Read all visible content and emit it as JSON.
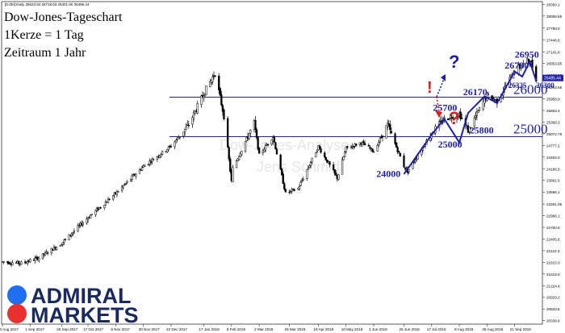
{
  "header": {
    "instrument_line": "[DJ30] Daily 26623.84 26718.03 26301.90 26485.44"
  },
  "overlay": {
    "title": "Dow-Jones-Tageschart",
    "line2": "1Kerze = 1 Tag",
    "line3": "Zeitraum 1 Jahr"
  },
  "watermark": {
    "text": "Dow-Jones-Analyse",
    "author": "Jens Schmidt"
  },
  "brand": {
    "line1": "ADMIRAL",
    "line2": "MARKETS",
    "color_dark": "#1a2a5e",
    "color_red": "#e8312f"
  },
  "colors": {
    "level_line": "#1f1fa8",
    "annotation": "#1f1fa8",
    "question_blue": "#1f1fa8",
    "question_red": "#d62020",
    "candle": "#000000",
    "current_price_tag": "#1f1fa8"
  },
  "chart_data": {
    "type": "candlestick",
    "x_ticks": [
      "10 Aug 2017",
      "1 Sep 2017",
      "26 Sep 2017",
      "17 Oct 2017",
      "8 Nov 2017",
      "30 Nov 2017",
      "22 Dec 2017",
      "17 Jan 2018",
      "8 Feb 2018",
      "2 Mar 2018",
      "26 Mar 2018",
      "18 Apr 2018",
      "10 May 2018",
      "1 Jun 2018",
      "25 Jun 2018",
      "17 Jul 2018",
      "8 Aug 2018",
      "30 Aug 2018",
      "21 Sep 2018"
    ],
    "y_ticks": [
      28350.1,
      28055.65,
      27750.0,
      27446.6,
      27141.8,
      26853.95,
      26558.95,
      26253.55,
      25958.9,
      25663.4,
      25368.3,
      25072.75,
      24777.2,
      24482.0,
      24186.5,
      23891.5,
      23596.1,
      23291.05,
      22996.1,
      22700.6,
      22405.6,
      22110.3,
      21815.0,
      21519.5,
      21224.4,
      20929.2,
      20633.8,
      20338.6
    ],
    "ylim": [
      20250,
      28400
    ],
    "current_price": "26485.44",
    "price_path": [
      [
        "2017-08-10",
        21830
      ],
      [
        "2017-08-25",
        21790
      ],
      [
        "2017-09-08",
        21930
      ],
      [
        "2017-09-26",
        22300
      ],
      [
        "2017-10-17",
        22950
      ],
      [
        "2017-11-08",
        23560
      ],
      [
        "2017-11-30",
        24250
      ],
      [
        "2017-12-22",
        24760
      ],
      [
        "2018-01-05",
        25300
      ],
      [
        "2018-01-17",
        26100
      ],
      [
        "2018-01-26",
        26610
      ],
      [
        "2018-02-02",
        25520
      ],
      [
        "2018-02-08",
        23860
      ],
      [
        "2018-02-09",
        24190
      ],
      [
        "2018-02-26",
        25350
      ],
      [
        "2018-03-02",
        24530
      ],
      [
        "2018-03-13",
        25010
      ],
      [
        "2018-03-23",
        23560
      ],
      [
        "2018-04-02",
        23690
      ],
      [
        "2018-04-18",
        24750
      ],
      [
        "2018-05-03",
        23950
      ],
      [
        "2018-05-10",
        24700
      ],
      [
        "2018-05-22",
        24850
      ],
      [
        "2018-06-01",
        24630
      ],
      [
        "2018-06-12",
        25300
      ],
      [
        "2018-06-25",
        24250
      ],
      [
        "2018-06-28",
        24120
      ],
      [
        "2018-07-17",
        25100
      ],
      [
        "2018-07-27",
        25450
      ],
      [
        "2018-08-08",
        25580
      ],
      [
        "2018-08-15",
        25150
      ],
      [
        "2018-08-30",
        26050
      ],
      [
        "2018-09-07",
        25900
      ],
      [
        "2018-09-21",
        26680
      ],
      [
        "2018-10-03",
        26950
      ],
      [
        "2018-10-08",
        26480
      ]
    ],
    "levels": [
      {
        "label": "26000",
        "value": 26000
      },
      {
        "label": "25000",
        "value": 25000
      }
    ],
    "annotations": [
      {
        "text": "24000",
        "x": "2018-06-12",
        "y": 23980
      },
      {
        "text": "25000",
        "x": "2018-07-31",
        "y": 24720
      },
      {
        "text": "25700",
        "x": "2018-07-27",
        "y": 25650
      },
      {
        "text": "25800",
        "x": "2018-08-25",
        "y": 25080
      },
      {
        "text": "26170",
        "x": "2018-08-20",
        "y": 26050
      },
      {
        "text": "26325",
        "x": "2018-09-25",
        "y": 26230
      },
      {
        "text": "26780",
        "x": "2018-09-22",
        "y": 26730
      },
      {
        "text": "26950",
        "x": "2018-09-30",
        "y": 27000
      },
      {
        "text": "26300",
        "x": "2018-10-17",
        "y": 26230
      }
    ],
    "wave_path": [
      [
        "2018-06-25",
        24050
      ],
      [
        "2018-07-17",
        25050
      ],
      [
        "2018-07-27",
        25450
      ],
      [
        "2018-08-08",
        24850
      ],
      [
        "2018-08-15",
        25600
      ],
      [
        "2018-08-28",
        26020
      ],
      [
        "2018-09-07",
        25850
      ],
      [
        "2018-09-21",
        26650
      ],
      [
        "2018-09-27",
        26520
      ],
      [
        "2018-10-03",
        26900
      ],
      [
        "2018-10-08",
        26420
      ]
    ],
    "grid": false
  }
}
